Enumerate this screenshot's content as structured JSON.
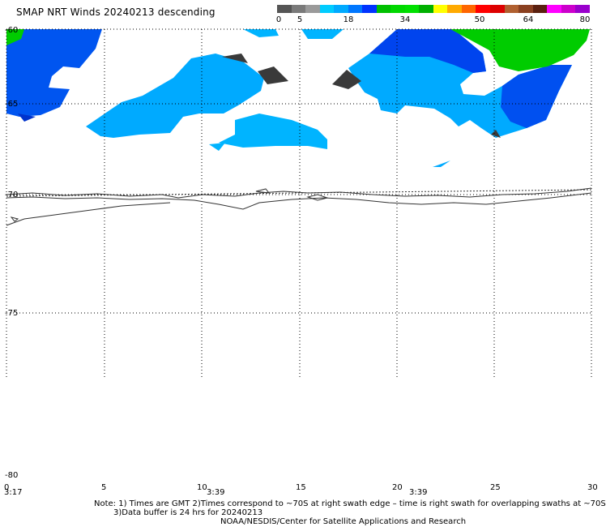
{
  "title": "SMAP NRT Winds  20240213 descending",
  "legend": {
    "labels": [
      "0",
      "5",
      "18",
      "34",
      "50",
      "64",
      "80"
    ],
    "colors": [
      "#555555",
      "#7a7a7a",
      "#9a9a9a",
      "#00ccff",
      "#00aaff",
      "#0077ff",
      "#0033ff",
      "#00c000",
      "#00d800",
      "#00e000",
      "#00b000",
      "#ffff00",
      "#ffaa00",
      "#ff6600",
      "#ff0000",
      "#dd0000",
      "#b06030",
      "#8a4020",
      "#5a2010",
      "#ff00ff",
      "#cc00cc",
      "#9900cc"
    ]
  },
  "axes": {
    "x_labels": [
      "0",
      "5",
      "10",
      "15",
      "20",
      "25",
      "30"
    ],
    "y_labels": [
      "-60",
      "-65",
      "-70",
      "-75",
      "-80"
    ],
    "time_labels": [
      "3:17",
      "3:39",
      "3:39"
    ]
  },
  "colors": {
    "grid": "#000000",
    "coast": "#333333",
    "light_wind": "#00aaff",
    "medium_wind": "#0044ee",
    "strong_wind": "#00dd00",
    "no_data_low": "#3a3a3a"
  },
  "notes": [
    "Note: 1) Times are GMT 2)Times correspond to ~70S at right swath edge – time is right swath for overlapping swaths at ~70S",
    "3)Data buffer is 24 hrs for 20240213",
    "NOAA/NESDIS/Center for Satellite Applications and Research"
  ]
}
